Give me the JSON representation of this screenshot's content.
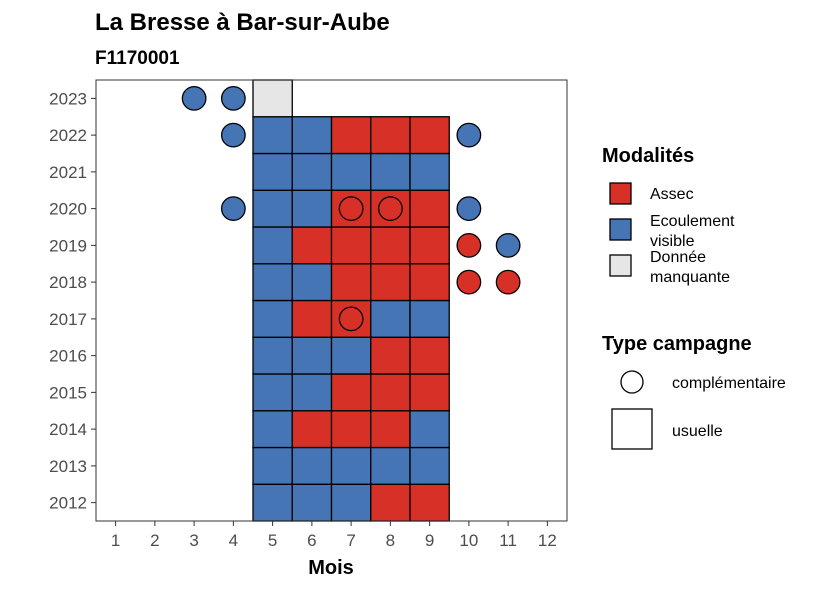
{
  "chart_data": {
    "type": "heatmap",
    "title": "La Bresse à Bar-sur-Aube",
    "subtitle": "F1170001",
    "xlabel": "Mois",
    "ylabel": "",
    "x_ticks": [
      1,
      2,
      3,
      4,
      5,
      6,
      7,
      8,
      9,
      10,
      11,
      12
    ],
    "y_ticks": [
      2012,
      2013,
      2014,
      2015,
      2016,
      2017,
      2018,
      2019,
      2020,
      2021,
      2022,
      2023
    ],
    "xlim": [
      0.5,
      12.5
    ],
    "ylim": [
      2011.5,
      2023.5
    ],
    "colors": {
      "Assec": "#d73027",
      "Ecoulement visible": "#4575b4",
      "Donnée manquante": "#e6e6e6"
    },
    "legend_modalites": {
      "title": "Modalités",
      "items": [
        {
          "key": "Assec",
          "lines": [
            "Assec"
          ]
        },
        {
          "key": "Ecoulement visible",
          "lines": [
            "Ecoulement",
            "visible"
          ]
        },
        {
          "key": "Donnée manquante",
          "lines": [
            "Donnée",
            "manquante"
          ]
        }
      ]
    },
    "legend_campagne": {
      "title": "Type campagne",
      "items": [
        {
          "shape": "circle",
          "label": "complémentaire"
        },
        {
          "shape": "square",
          "label": "usuelle"
        }
      ]
    },
    "usuelle": [
      {
        "year": 2012,
        "months": [
          "E",
          "E",
          "E",
          "A",
          "A"
        ]
      },
      {
        "year": 2013,
        "months": [
          "E",
          "E",
          "E",
          "E",
          "E"
        ]
      },
      {
        "year": 2014,
        "months": [
          "E",
          "A",
          "A",
          "A",
          "E"
        ]
      },
      {
        "year": 2015,
        "months": [
          "E",
          "E",
          "A",
          "A",
          "A"
        ]
      },
      {
        "year": 2016,
        "months": [
          "E",
          "E",
          "E",
          "A",
          "A"
        ]
      },
      {
        "year": 2017,
        "months": [
          "E",
          "A",
          "A",
          "E",
          "E"
        ]
      },
      {
        "year": 2018,
        "months": [
          "E",
          "E",
          "A",
          "A",
          "A"
        ]
      },
      {
        "year": 2019,
        "months": [
          "E",
          "A",
          "A",
          "A",
          "A"
        ]
      },
      {
        "year": 2020,
        "months": [
          "E",
          "E",
          "A",
          "A",
          "A"
        ]
      },
      {
        "year": 2021,
        "months": [
          "E",
          "E",
          "E",
          "E",
          "E"
        ]
      },
      {
        "year": 2022,
        "months": [
          "E",
          "E",
          "A",
          "A",
          "A"
        ]
      },
      {
        "year": 2023,
        "months": [
          "M"
        ]
      }
    ],
    "usuelle_start_month": 5,
    "complementaire": [
      {
        "year": 2023,
        "month": 3,
        "value": "E"
      },
      {
        "year": 2023,
        "month": 4,
        "value": "E"
      },
      {
        "year": 2022,
        "month": 4,
        "value": "E"
      },
      {
        "year": 2022,
        "month": 10,
        "value": "E"
      },
      {
        "year": 2020,
        "month": 4,
        "value": "E"
      },
      {
        "year": 2020,
        "month": 7,
        "value": "A"
      },
      {
        "year": 2020,
        "month": 8,
        "value": "A"
      },
      {
        "year": 2020,
        "month": 10,
        "value": "E"
      },
      {
        "year": 2019,
        "month": 10,
        "value": "A"
      },
      {
        "year": 2019,
        "month": 11,
        "value": "E"
      },
      {
        "year": 2018,
        "month": 10,
        "value": "A"
      },
      {
        "year": 2018,
        "month": 11,
        "value": "A"
      },
      {
        "year": 2017,
        "month": 7,
        "value": "A"
      }
    ],
    "value_codes": {
      "A": "Assec",
      "E": "Ecoulement visible",
      "M": "Donnée manquante"
    }
  }
}
